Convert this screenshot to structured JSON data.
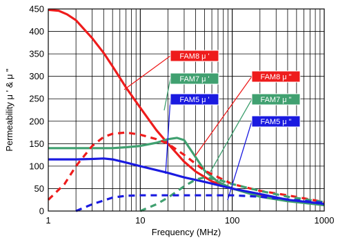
{
  "chart_data": {
    "type": "line",
    "xlabel": "Frequency (MHz)",
    "ylabel": "Permeability μ ' & μ \"",
    "x_scale": "log",
    "xlim": [
      1,
      1000
    ],
    "ylim": [
      0,
      450
    ],
    "x_ticks": [
      {
        "value": 1,
        "label": "1"
      },
      {
        "value": 10,
        "label": "10"
      },
      {
        "value": 100,
        "label": "100"
      },
      {
        "value": 1000,
        "label": "1000"
      }
    ],
    "y_ticks": [
      {
        "value": 0,
        "label": "0"
      },
      {
        "value": 50,
        "label": "50"
      },
      {
        "value": 100,
        "label": "100"
      },
      {
        "value": 150,
        "label": "150"
      },
      {
        "value": 200,
        "label": "200"
      },
      {
        "value": 250,
        "label": "250"
      },
      {
        "value": 300,
        "label": "300"
      },
      {
        "value": 350,
        "label": "350"
      },
      {
        "value": 400,
        "label": "400"
      },
      {
        "value": 450,
        "label": "450"
      }
    ],
    "grid": true,
    "series": [
      {
        "name": "FAM8 μ '",
        "color": "#ee1c1c",
        "style": "solid",
        "x": [
          1,
          1.3,
          1.6,
          2,
          3,
          4,
          5,
          7,
          10,
          15,
          20,
          30,
          40,
          60,
          100,
          200,
          400,
          1000
        ],
        "y": [
          448,
          446,
          438,
          425,
          385,
          352,
          322,
          275,
          230,
          180,
          150,
          110,
          88,
          66,
          50,
          35,
          24,
          13
        ]
      },
      {
        "name": "FAM7 μ '",
        "color": "#40a070",
        "style": "solid",
        "x": [
          1,
          2,
          3,
          5,
          7,
          10,
          15,
          20,
          25,
          30,
          40,
          50,
          70,
          100,
          200,
          400,
          1000
        ],
        "y": [
          140,
          140,
          140,
          140,
          142,
          145,
          152,
          160,
          163,
          158,
          120,
          90,
          65,
          50,
          32,
          22,
          13
        ]
      },
      {
        "name": "FAM5 μ '",
        "color": "#1a1ae0",
        "style": "solid",
        "x": [
          1,
          2,
          3,
          4,
          5,
          7,
          10,
          20,
          30,
          50,
          100,
          200,
          400,
          1000
        ],
        "y": [
          115,
          115,
          116,
          117,
          115,
          108,
          100,
          85,
          75,
          65,
          50,
          38,
          25,
          16
        ]
      },
      {
        "name": "FAM8 μ \"",
        "color": "#ee1c1c",
        "style": "dash",
        "x": [
          1,
          1.5,
          2,
          3,
          4,
          5,
          7,
          10,
          15,
          20,
          30,
          50,
          100,
          200,
          400,
          1000
        ],
        "y": [
          25,
          60,
          100,
          145,
          165,
          172,
          175,
          170,
          160,
          150,
          125,
          90,
          60,
          45,
          35,
          20
        ]
      },
      {
        "name": "FAM7 μ \"",
        "color": "#40a070",
        "style": "dash",
        "x": [
          10,
          15,
          20,
          30,
          40,
          50,
          70,
          100,
          200,
          400,
          1000
        ],
        "y": [
          0,
          15,
          30,
          55,
          70,
          75,
          70,
          60,
          45,
          32,
          20
        ]
      },
      {
        "name": "FAM5 μ \"",
        "color": "#1a1ae0",
        "style": "dash",
        "x": [
          2,
          3,
          5,
          7,
          10,
          20,
          30,
          50,
          100,
          200,
          400,
          1000
        ],
        "y": [
          0,
          15,
          30,
          34,
          35,
          35,
          35,
          35,
          35,
          32,
          26,
          18
        ]
      }
    ],
    "legend": [
      {
        "label": "FAM8 μ '",
        "color": "#ee1c1c",
        "placement": "center",
        "points_to": "FAM8 μ '"
      },
      {
        "label": "FAM7 μ '",
        "color": "#40a070",
        "placement": "center",
        "points_to": "FAM7 μ '"
      },
      {
        "label": "FAM5 μ '",
        "color": "#1a1ae0",
        "placement": "center",
        "points_to": "FAM5 μ '"
      },
      {
        "label": "FAM8 μ \"",
        "color": "#ee1c1c",
        "placement": "right",
        "points_to": "FAM8 μ \""
      },
      {
        "label": "FAM7 μ \"",
        "color": "#40a070",
        "placement": "right",
        "points_to": "FAM7 μ \""
      },
      {
        "label": "FAM5 μ \"",
        "color": "#1a1ae0",
        "placement": "right",
        "points_to": "FAM5 μ \""
      }
    ]
  }
}
